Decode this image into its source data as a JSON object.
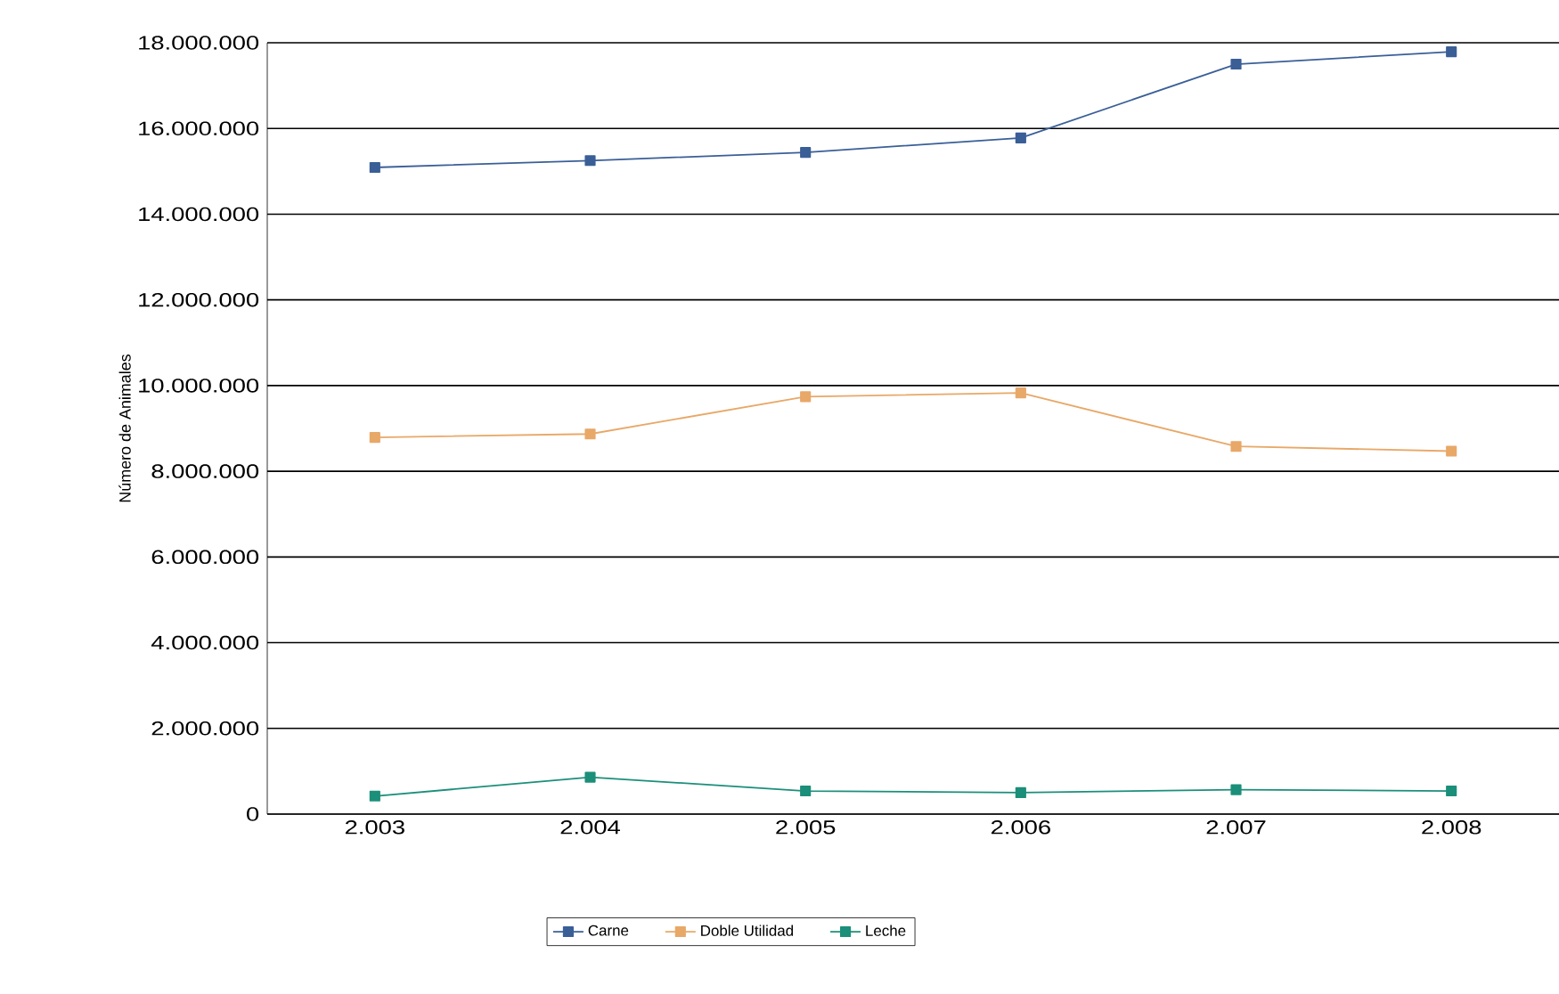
{
  "chart_data": {
    "type": "line",
    "ylabel": "Número de Animales",
    "categories": [
      "2.003",
      "2.004",
      "2.005",
      "2.006",
      "2.007",
      "2.008"
    ],
    "series": [
      {
        "name": "Carne",
        "color": "#3a5f97",
        "values": [
          15090000,
          15250000,
          15440000,
          15780000,
          17500000,
          17790000
        ]
      },
      {
        "name": "Doble Utilidad",
        "color": "#e8a868",
        "values": [
          8790000,
          8870000,
          9740000,
          9830000,
          8580000,
          8470000
        ]
      },
      {
        "name": "Leche",
        "color": "#1b8f7a",
        "values": [
          420000,
          860000,
          540000,
          500000,
          570000,
          540000
        ]
      }
    ],
    "ylim": [
      0,
      18000000
    ],
    "yticks": [
      {
        "value": 0,
        "label": "0"
      },
      {
        "value": 2000000,
        "label": "2.000.000"
      },
      {
        "value": 4000000,
        "label": "4.000.000"
      },
      {
        "value": 6000000,
        "label": "6.000.000"
      },
      {
        "value": 8000000,
        "label": "8.000.000"
      },
      {
        "value": 10000000,
        "label": "10.000.000"
      },
      {
        "value": 12000000,
        "label": "12.000.000"
      },
      {
        "value": 14000000,
        "label": "14.000.000"
      },
      {
        "value": 16000000,
        "label": "16.000.000"
      },
      {
        "value": 18000000,
        "label": "18.000.000"
      }
    ],
    "grid": "y",
    "legend": "bottom",
    "marker": "square",
    "line_style": "solid"
  }
}
